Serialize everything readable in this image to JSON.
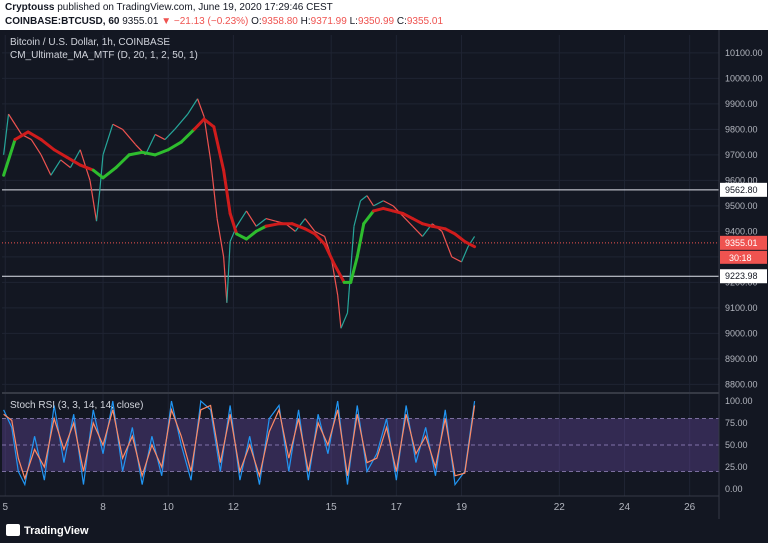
{
  "header": {
    "user": "Cryptouss",
    "published": "published on TradingView.com, June 19, 2020 17:29:46 CEST",
    "symbol": "COINBASE:BTCUSD, 60",
    "last": "9355.01",
    "change": "−21.13 (−0.23%)",
    "o_label": "O:",
    "o": "9358.80",
    "h_label": "H:",
    "h": "9371.99",
    "l_label": "L:",
    "l": "9350.99",
    "c_label": "C:",
    "c": "9355.01"
  },
  "legend": {
    "title": "Bitcoin / U.S. Dollar, 1h, COINBASE",
    "indicator": "CM_Ultimate_MA_MTF (D, 20, 1, 2, 50, 1)",
    "rsi": "Stoch RSI (3, 3, 14, 14, close)"
  },
  "footer": {
    "brand": "TradingView"
  },
  "colors": {
    "up": "#26a69a",
    "down": "#ef5350",
    "ma_up": "#2ebd2e",
    "ma_down": "#d01c1c",
    "rsi_k": "#2196f3",
    "rsi_d": "#ff8a65",
    "rsi_band": "#7e57c2"
  },
  "chart_data": [
    {
      "type": "line",
      "title": "Bitcoin / U.S. Dollar, 1h, COINBASE",
      "x_labels": [
        "5",
        "8",
        "10",
        "12",
        "15",
        "17",
        "19",
        "22",
        "24",
        "26"
      ],
      "x_positions": [
        5,
        8,
        10,
        12,
        15,
        17,
        19,
        22,
        24,
        26
      ],
      "xlim": [
        4.9,
        26.9
      ],
      "ylim": [
        8770,
        10170
      ],
      "y_ticks": [
        "8800.00",
        "8900.00",
        "9000.00",
        "9100.00",
        "9200.00",
        "9300.00",
        "9400.00",
        "9500.00",
        "9600.00",
        "9700.00",
        "9800.00",
        "9900.00",
        "10000.00",
        "10100.00"
      ],
      "y_tick_values": [
        8800,
        8900,
        9000,
        9100,
        9200,
        9300,
        9400,
        9500,
        9600,
        9700,
        9800,
        9900,
        10000,
        10100
      ],
      "horizontal_levels": [
        9562.8,
        9223.98
      ],
      "level_labels": [
        "9562.80",
        "9223.98"
      ],
      "last_price": 9355.01,
      "last_price_label": "9355.01",
      "countdown": "30:18",
      "price_series": {
        "x": [
          4.95,
          5.1,
          5.3,
          5.5,
          5.8,
          6.1,
          6.4,
          6.7,
          7.0,
          7.3,
          7.6,
          7.8,
          7.9,
          8.0,
          8.3,
          8.6,
          9.0,
          9.3,
          9.6,
          9.9,
          10.2,
          10.6,
          10.9,
          11.1,
          11.3,
          11.5,
          11.7,
          11.8,
          11.9,
          12.1,
          12.4,
          12.7,
          13.0,
          13.3,
          13.6,
          13.9,
          14.2,
          14.5,
          14.8,
          15.0,
          15.2,
          15.3,
          15.5,
          15.7,
          15.9,
          16.1,
          16.3,
          16.6,
          16.9,
          17.2,
          17.5,
          17.8,
          18.1,
          18.4,
          18.7,
          19.0,
          19.2,
          19.4
        ],
        "y": [
          9700,
          9860,
          9820,
          9780,
          9760,
          9700,
          9620,
          9680,
          9650,
          9720,
          9600,
          9440,
          9560,
          9700,
          9820,
          9800,
          9740,
          9700,
          9780,
          9760,
          9800,
          9860,
          9920,
          9850,
          9680,
          9450,
          9300,
          9120,
          9360,
          9420,
          9480,
          9420,
          9450,
          9440,
          9430,
          9400,
          9450,
          9400,
          9380,
          9300,
          9150,
          9020,
          9080,
          9420,
          9520,
          9540,
          9500,
          9520,
          9500,
          9460,
          9420,
          9380,
          9430,
          9400,
          9300,
          9280,
          9340,
          9380
        ]
      },
      "ma_series": {
        "x": [
          4.95,
          5.3,
          5.7,
          6.1,
          6.5,
          6.9,
          7.3,
          7.7,
          8.0,
          8.4,
          8.8,
          9.2,
          9.6,
          10.0,
          10.4,
          10.8,
          11.1,
          11.4,
          11.7,
          11.9,
          12.1,
          12.4,
          12.7,
          13.0,
          13.4,
          13.8,
          14.2,
          14.5,
          14.8,
          15.1,
          15.4,
          15.6,
          15.8,
          16.0,
          16.3,
          16.6,
          16.9,
          17.2,
          17.5,
          17.8,
          18.1,
          18.5,
          18.8,
          19.1,
          19.4
        ],
        "y": [
          9620,
          9760,
          9790,
          9760,
          9720,
          9690,
          9660,
          9640,
          9610,
          9650,
          9700,
          9710,
          9700,
          9720,
          9750,
          9800,
          9840,
          9810,
          9640,
          9470,
          9390,
          9370,
          9400,
          9420,
          9430,
          9430,
          9410,
          9390,
          9350,
          9270,
          9200,
          9200,
          9300,
          9430,
          9480,
          9490,
          9480,
          9470,
          9450,
          9430,
          9420,
          9410,
          9390,
          9360,
          9340
        ],
        "trend": [
          "up",
          "up",
          "down",
          "down",
          "down",
          "down",
          "down",
          "down",
          "up",
          "up",
          "up",
          "up",
          "up",
          "up",
          "up",
          "up",
          "down",
          "down",
          "down",
          "down",
          "down",
          "up",
          "up",
          "up",
          "down",
          "down",
          "down",
          "down",
          "down",
          "down",
          "down",
          "up",
          "up",
          "up",
          "up",
          "down",
          "down",
          "down",
          "down",
          "down",
          "down",
          "down",
          "down",
          "down",
          "down"
        ]
      }
    },
    {
      "type": "line",
      "title": "Stoch RSI (3, 3, 14, 14, close)",
      "ylim": [
        -8,
        108
      ],
      "y_ticks": [
        "0.00",
        "25.00",
        "50.00",
        "75.00",
        "100.00"
      ],
      "y_tick_values": [
        0,
        25,
        50,
        75,
        100
      ],
      "band": [
        20,
        80
      ],
      "series": [
        {
          "name": "K",
          "x": [
            4.95,
            5.2,
            5.4,
            5.6,
            5.9,
            6.2,
            6.5,
            6.8,
            7.1,
            7.4,
            7.7,
            8.0,
            8.3,
            8.6,
            8.9,
            9.2,
            9.5,
            9.8,
            10.1,
            10.4,
            10.7,
            11.0,
            11.3,
            11.6,
            11.9,
            12.2,
            12.5,
            12.8,
            13.1,
            13.4,
            13.7,
            14.0,
            14.3,
            14.6,
            14.9,
            15.2,
            15.5,
            15.8,
            16.1,
            16.4,
            16.7,
            17.0,
            17.3,
            17.6,
            17.9,
            18.2,
            18.5,
            18.8,
            19.1,
            19.4
          ],
          "y": [
            90,
            70,
            20,
            5,
            60,
            10,
            95,
            30,
            85,
            5,
            90,
            40,
            100,
            20,
            70,
            5,
            60,
            15,
            100,
            50,
            10,
            100,
            90,
            20,
            95,
            10,
            60,
            5,
            80,
            95,
            20,
            90,
            10,
            85,
            40,
            100,
            5,
            95,
            20,
            40,
            80,
            10,
            95,
            30,
            70,
            15,
            90,
            5,
            20,
            100
          ]
        },
        {
          "name": "D",
          "x": [
            4.95,
            5.2,
            5.4,
            5.6,
            5.9,
            6.2,
            6.5,
            6.8,
            7.1,
            7.4,
            7.7,
            8.0,
            8.3,
            8.6,
            8.9,
            9.2,
            9.5,
            9.8,
            10.1,
            10.4,
            10.7,
            11.0,
            11.3,
            11.6,
            11.9,
            12.2,
            12.5,
            12.8,
            13.1,
            13.4,
            13.7,
            14.0,
            14.3,
            14.6,
            14.9,
            15.2,
            15.5,
            15.8,
            16.1,
            16.4,
            16.7,
            17.0,
            17.3,
            17.6,
            17.9,
            18.2,
            18.5,
            18.8,
            19.1,
            19.4
          ],
          "y": [
            85,
            78,
            35,
            12,
            45,
            25,
            80,
            45,
            75,
            20,
            75,
            50,
            90,
            35,
            60,
            15,
            50,
            25,
            90,
            60,
            20,
            90,
            95,
            30,
            85,
            20,
            50,
            15,
            65,
            90,
            35,
            80,
            20,
            75,
            50,
            90,
            15,
            85,
            30,
            35,
            70,
            20,
            85,
            40,
            60,
            25,
            80,
            15,
            18,
            95
          ]
        }
      ]
    }
  ]
}
